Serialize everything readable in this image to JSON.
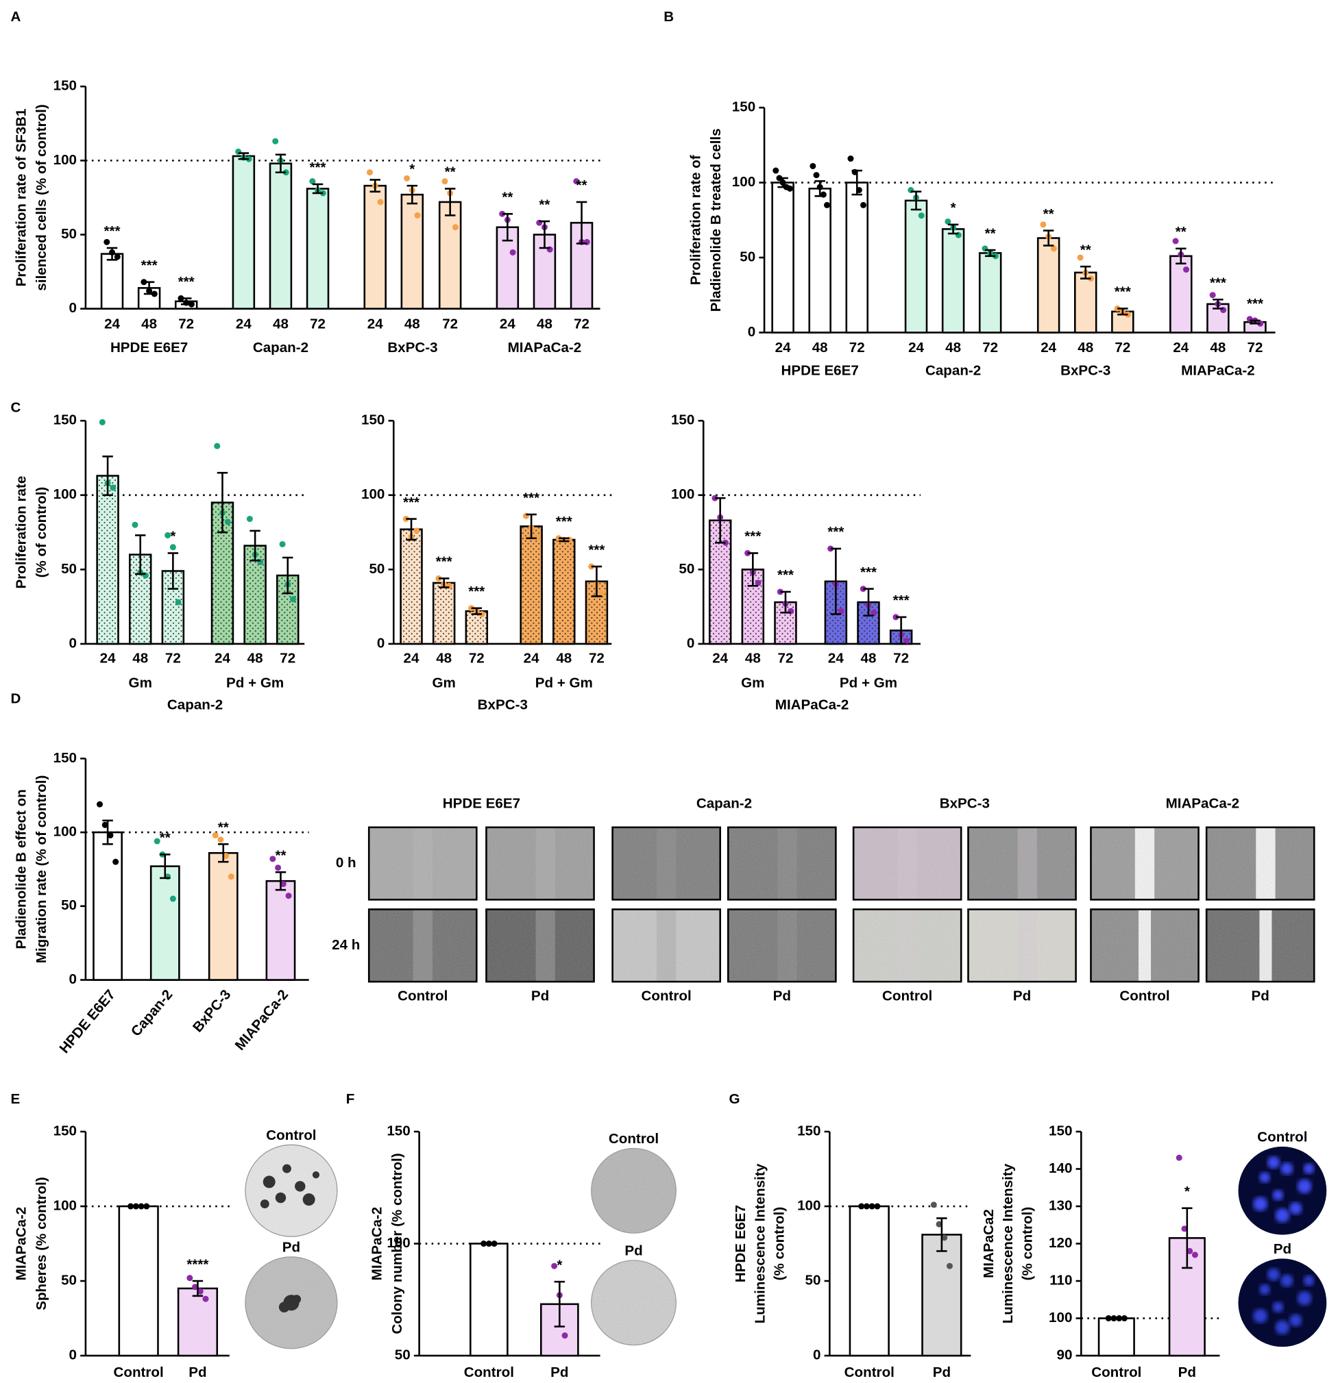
{
  "panels": [
    "A",
    "B",
    "C",
    "D",
    "E",
    "F",
    "G"
  ],
  "images": {
    "migration": {
      "times": [
        "0 h",
        "24 h"
      ],
      "cell_lines": [
        {
          "name": "HPDE E6E7",
          "conditions": [
            "Control",
            "Pd"
          ]
        },
        {
          "name": "Capan-2",
          "conditions": [
            "Control",
            "Pd"
          ]
        },
        {
          "name": "BxPC-3",
          "conditions": [
            "Control",
            "Pd"
          ]
        },
        {
          "name": "MIAPaCa-2",
          "conditions": [
            "Control",
            "Pd"
          ]
        }
      ]
    }
  },
  "chart_data": [
    {
      "type": "bar",
      "ylabel": [
        "Proliferation rate of SF3B1",
        "silenced cells (% of control)"
      ],
      "ylim": [
        0,
        150
      ],
      "yticks": [
        0,
        50,
        100,
        150
      ],
      "reference_line": 100,
      "groups": [
        {
          "name": "HPDE E6E7",
          "color": "#ffffff",
          "point_color": "#000000",
          "categories": [
            "24",
            "48",
            "72"
          ],
          "values": [
            37,
            14,
            5
          ],
          "errors": [
            4,
            4,
            2
          ],
          "points": [
            [
              45,
              38,
              35
            ],
            [
              18,
              12,
              10
            ],
            [
              7,
              4,
              3
            ]
          ],
          "annotations": [
            "***",
            "***",
            "***"
          ]
        },
        {
          "name": "Capan-2",
          "color": "#d4f5e6",
          "point_color": "#1aa37a",
          "categories": [
            "24",
            "48",
            "72"
          ],
          "values": [
            103,
            98,
            81
          ],
          "errors": [
            2,
            6,
            3
          ],
          "points": [
            [
              106,
              102,
              101
            ],
            [
              113,
              100,
              92
            ],
            [
              86,
              80,
              78
            ]
          ],
          "annotations": [
            null,
            null,
            "***"
          ]
        },
        {
          "name": "BxPC-3",
          "color": "#fde1c6",
          "point_color": "#f4a14a",
          "categories": [
            "24",
            "48",
            "72"
          ],
          "values": [
            83,
            77,
            72
          ],
          "errors": [
            4,
            6,
            9
          ],
          "points": [
            [
              92,
              83,
              72
            ],
            [
              88,
              80,
              63
            ],
            [
              86,
              78,
              55
            ]
          ],
          "annotations": [
            null,
            "*",
            "**"
          ]
        },
        {
          "name": "MIAPaCa-2",
          "color": "#f0d5f5",
          "point_color": "#8e2aa8",
          "categories": [
            "24",
            "48",
            "72"
          ],
          "values": [
            55,
            50,
            58
          ],
          "errors": [
            9,
            9,
            14
          ],
          "points": [
            [
              64,
              60,
              38
            ],
            [
              58,
              55,
              40
            ],
            [
              86,
              45,
              45
            ]
          ],
          "annotations": [
            "**",
            "**",
            "**"
          ]
        }
      ]
    },
    {
      "type": "bar",
      "ylabel": [
        "Proliferation rate of",
        "Pladienolide B treated cells"
      ],
      "ylim": [
        0,
        150
      ],
      "yticks": [
        0,
        50,
        100,
        150
      ],
      "reference_line": 100,
      "groups": [
        {
          "name": "HPDE E6E7",
          "color": "#ffffff",
          "point_color": "#000000",
          "categories": [
            "24",
            "48",
            "72"
          ],
          "values": [
            100,
            96,
            100
          ],
          "errors": [
            3,
            5,
            8
          ],
          "points": [
            [
              108,
              103,
              100,
              97,
              96
            ],
            [
              111,
              105,
              97,
              92,
              85
            ],
            [
              116,
              107,
              95,
              85
            ]
          ],
          "annotations": [
            null,
            null,
            null
          ]
        },
        {
          "name": "Capan-2",
          "color": "#d4f5e6",
          "point_color": "#1aa37a",
          "categories": [
            "24",
            "48",
            "72"
          ],
          "values": [
            88,
            69,
            53
          ],
          "errors": [
            6,
            3,
            2
          ],
          "points": [
            [
              95,
              90,
              78
            ],
            [
              74,
              70,
              65
            ],
            [
              56,
              53,
              51
            ]
          ],
          "annotations": [
            null,
            "*",
            "**"
          ]
        },
        {
          "name": "BxPC-3",
          "color": "#fde1c6",
          "point_color": "#f4a14a",
          "categories": [
            "24",
            "48",
            "72"
          ],
          "values": [
            63,
            40,
            14
          ],
          "errors": [
            5,
            4,
            2
          ],
          "points": [
            [
              72,
              64,
              56
            ],
            [
              50,
              40,
              36
            ],
            [
              16,
              14,
              12
            ]
          ],
          "annotations": [
            "**",
            "**",
            "***"
          ]
        },
        {
          "name": "MIAPaCa-2",
          "color": "#f0d5f5",
          "point_color": "#8e2aa8",
          "categories": [
            "24",
            "48",
            "72"
          ],
          "values": [
            51,
            19,
            7
          ],
          "errors": [
            5,
            3,
            1
          ],
          "points": [
            [
              61,
              52,
              42
            ],
            [
              25,
              19,
              15
            ],
            [
              9,
              8,
              6
            ]
          ],
          "annotations": [
            "**",
            "***",
            "***"
          ]
        }
      ]
    },
    {
      "type": "bar",
      "ylabel": [
        "Proliferation rate",
        "(% of control)"
      ],
      "xlabel": "Capan-2",
      "pattern": "dotted",
      "ylim": [
        0,
        150
      ],
      "yticks": [
        0,
        50,
        100,
        150
      ],
      "reference_line": 100,
      "groups": [
        {
          "name": "Gm",
          "color": "#d4f5e6",
          "point_color": "#1aa37a",
          "categories": [
            "24",
            "48",
            "72"
          ],
          "values": [
            113,
            60,
            49
          ],
          "errors": [
            13,
            13,
            12
          ],
          "points": [
            [
              149,
              108,
              105
            ],
            [
              80,
              48,
              46
            ],
            [
              73,
              65,
              28
            ]
          ],
          "annotations": [
            null,
            null,
            "*"
          ]
        },
        {
          "name": "Pd + Gm",
          "color": "#9fd8a4",
          "point_color": "#1aa37a",
          "categories": [
            "24",
            "48",
            "72"
          ],
          "values": [
            95,
            66,
            46
          ],
          "errors": [
            20,
            10,
            12
          ],
          "points": [
            [
              133,
              88,
              82
            ],
            [
              84,
              60,
              55
            ],
            [
              67,
              40,
              30
            ]
          ],
          "annotations": [
            null,
            null,
            null
          ]
        }
      ]
    },
    {
      "type": "bar",
      "xlabel": "BxPC-3",
      "pattern": "dotted",
      "ylim": [
        0,
        150
      ],
      "yticks": [
        0,
        50,
        100,
        150
      ],
      "reference_line": 100,
      "groups": [
        {
          "name": "Gm",
          "color": "#fde1c6",
          "point_color": "#f4a14a",
          "categories": [
            "24",
            "48",
            "72"
          ],
          "values": [
            77,
            41,
            22
          ],
          "errors": [
            7,
            3,
            2
          ],
          "points": [
            [
              84,
              72,
              76
            ],
            [
              44,
              40,
              39
            ],
            [
              24,
              22,
              20
            ]
          ],
          "annotations": [
            "***",
            "***",
            "***"
          ]
        },
        {
          "name": "Pd + Gm",
          "color": "#f7a95a",
          "point_color": "#f4a14a",
          "categories": [
            "24",
            "48",
            "72"
          ],
          "values": [
            79,
            70,
            42
          ],
          "errors": [
            8,
            1,
            10
          ],
          "points": [
            [
              86,
              78,
              72
            ],
            [
              71,
              70,
              70
            ],
            [
              52,
              40,
              34
            ]
          ],
          "annotations": [
            "***",
            "***",
            "***"
          ]
        }
      ]
    },
    {
      "type": "bar",
      "xlabel": "MIAPaCa-2",
      "pattern": "dotted",
      "ylim": [
        0,
        150
      ],
      "yticks": [
        0,
        50,
        100,
        150
      ],
      "reference_line": 100,
      "groups": [
        {
          "name": "Gm",
          "color": "#f2c6f2",
          "point_color": "#8e2aa8",
          "categories": [
            "24",
            "48",
            "72"
          ],
          "values": [
            83,
            50,
            28
          ],
          "errors": [
            15,
            11,
            7
          ],
          "points": [
            [
              98,
              85,
              68
            ],
            [
              61,
              48,
              41
            ],
            [
              35,
              27,
              22
            ]
          ],
          "annotations": [
            null,
            "***",
            "***"
          ]
        },
        {
          "name": "Pd + Gm",
          "color": "#6b6be6",
          "point_color": "#8e2aa8",
          "categories": [
            "24",
            "48",
            "72"
          ],
          "values": [
            42,
            28,
            9
          ],
          "errors": [
            22,
            9,
            9
          ],
          "points": [
            [
              64,
              40,
              22
            ],
            [
              37,
              26,
              21
            ],
            [
              18,
              6,
              2
            ]
          ],
          "annotations": [
            "***",
            "***",
            "***"
          ]
        }
      ]
    },
    {
      "type": "bar",
      "ylabel": [
        "Pladienolide B effect on",
        "Migration rate (% of control)"
      ],
      "ylim": [
        0,
        150
      ],
      "yticks": [
        0,
        50,
        100,
        150
      ],
      "reference_line": 100,
      "groups": [
        {
          "color": "#ffffff",
          "point_color": "#000000",
          "categories": [
            "HPDE E6E7"
          ],
          "values": [
            100
          ],
          "errors": [
            8
          ],
          "points": [
            [
              119,
              105,
              98,
              80
            ]
          ],
          "annotations": [
            null
          ]
        },
        {
          "color": "#d4f5e6",
          "point_color": "#1aa37a",
          "categories": [
            "Capan-2"
          ],
          "values": [
            77
          ],
          "errors": [
            8
          ],
          "points": [
            [
              94,
              85,
              70,
              55
            ]
          ],
          "annotations": [
            "**"
          ]
        },
        {
          "color": "#fde1c6",
          "point_color": "#f4a14a",
          "categories": [
            "BxPC-3"
          ],
          "values": [
            86
          ],
          "errors": [
            6
          ],
          "points": [
            [
              98,
              95,
              84,
              70
            ]
          ],
          "annotations": [
            "**"
          ]
        },
        {
          "color": "#f0d5f5",
          "point_color": "#8e2aa8",
          "categories": [
            "MIAPaCa-2"
          ],
          "values": [
            67
          ],
          "errors": [
            6
          ],
          "points": [
            [
              82,
              76,
              65,
              57
            ]
          ],
          "annotations": [
            "**"
          ]
        }
      ]
    },
    {
      "type": "bar",
      "ylabel": [
        "MIAPaCa-2",
        "Spheres (% control)"
      ],
      "image_labels": [
        "Control",
        "Pd"
      ],
      "ylim": [
        0,
        150
      ],
      "yticks": [
        0,
        50,
        100,
        150
      ],
      "reference_line": 100,
      "groups": [
        {
          "color": "#ffffff",
          "point_color": "#000000",
          "categories": [
            "Control"
          ],
          "values": [
            100
          ],
          "errors": [
            0
          ],
          "points": [
            [
              100,
              100,
              100,
              100
            ]
          ],
          "annotations": [
            null
          ]
        },
        {
          "color": "#f0d5f5",
          "point_color": "#8e2aa8",
          "categories": [
            "Pd"
          ],
          "values": [
            45
          ],
          "errors": [
            5
          ],
          "points": [
            [
              52,
              46,
              43,
              38
            ]
          ],
          "annotations": [
            "****"
          ]
        }
      ]
    },
    {
      "type": "bar",
      "ylabel": [
        "MIAPaCa-2",
        "Colony number (% control)"
      ],
      "image_labels": [
        "Control",
        "Pd"
      ],
      "ylim": [
        50,
        150
      ],
      "yticks": [
        50,
        100,
        150
      ],
      "reference_line": 100,
      "groups": [
        {
          "color": "#ffffff",
          "point_color": "#000000",
          "categories": [
            "Control"
          ],
          "values": [
            100
          ],
          "errors": [
            0
          ],
          "points": [
            [
              100,
              100,
              100
            ]
          ],
          "annotations": [
            null
          ]
        },
        {
          "color": "#f0d5f5",
          "point_color": "#8e2aa8",
          "categories": [
            "Pd"
          ],
          "values": [
            73
          ],
          "errors": [
            10
          ],
          "points": [
            [
              90,
              77,
              59
            ]
          ],
          "annotations": [
            "*"
          ]
        }
      ]
    },
    {
      "type": "bar",
      "ylabel": [
        "HPDE E6E7",
        "Luminescence Intensity",
        "(% control)"
      ],
      "ylim": [
        0,
        150
      ],
      "yticks": [
        0,
        50,
        100,
        150
      ],
      "reference_line": 100,
      "groups": [
        {
          "color": "#ffffff",
          "point_color": "#000000",
          "categories": [
            "Control"
          ],
          "values": [
            100
          ],
          "errors": [
            0
          ],
          "points": [
            [
              100,
              100,
              100,
              100
            ]
          ],
          "annotations": [
            null
          ]
        },
        {
          "color": "#d9d9d9",
          "point_color": "#555555",
          "categories": [
            "Pd"
          ],
          "values": [
            81
          ],
          "errors": [
            11
          ],
          "points": [
            [
              101,
              88,
              79,
              60
            ]
          ],
          "annotations": [
            null
          ]
        }
      ]
    },
    {
      "type": "bar",
      "ylabel": [
        "MIAPaCa2",
        "Luminescence Intensity",
        "(% control)"
      ],
      "image_labels": [
        "Control",
        "Pd"
      ],
      "ylim": [
        90,
        150
      ],
      "yticks": [
        90,
        100,
        110,
        120,
        130,
        140,
        150
      ],
      "reference_line": 100,
      "groups": [
        {
          "color": "#ffffff",
          "point_color": "#000000",
          "categories": [
            "Control"
          ],
          "values": [
            100
          ],
          "errors": [
            0
          ],
          "points": [
            [
              100,
              100,
              100,
              100
            ]
          ],
          "annotations": [
            null
          ]
        },
        {
          "color": "#f0d5f5",
          "point_color": "#8e2aa8",
          "categories": [
            "Pd"
          ],
          "values": [
            121.5
          ],
          "errors": [
            8
          ],
          "points": [
            [
              143,
              124,
              118,
              117
            ]
          ],
          "annotations": [
            "*"
          ]
        }
      ]
    }
  ]
}
